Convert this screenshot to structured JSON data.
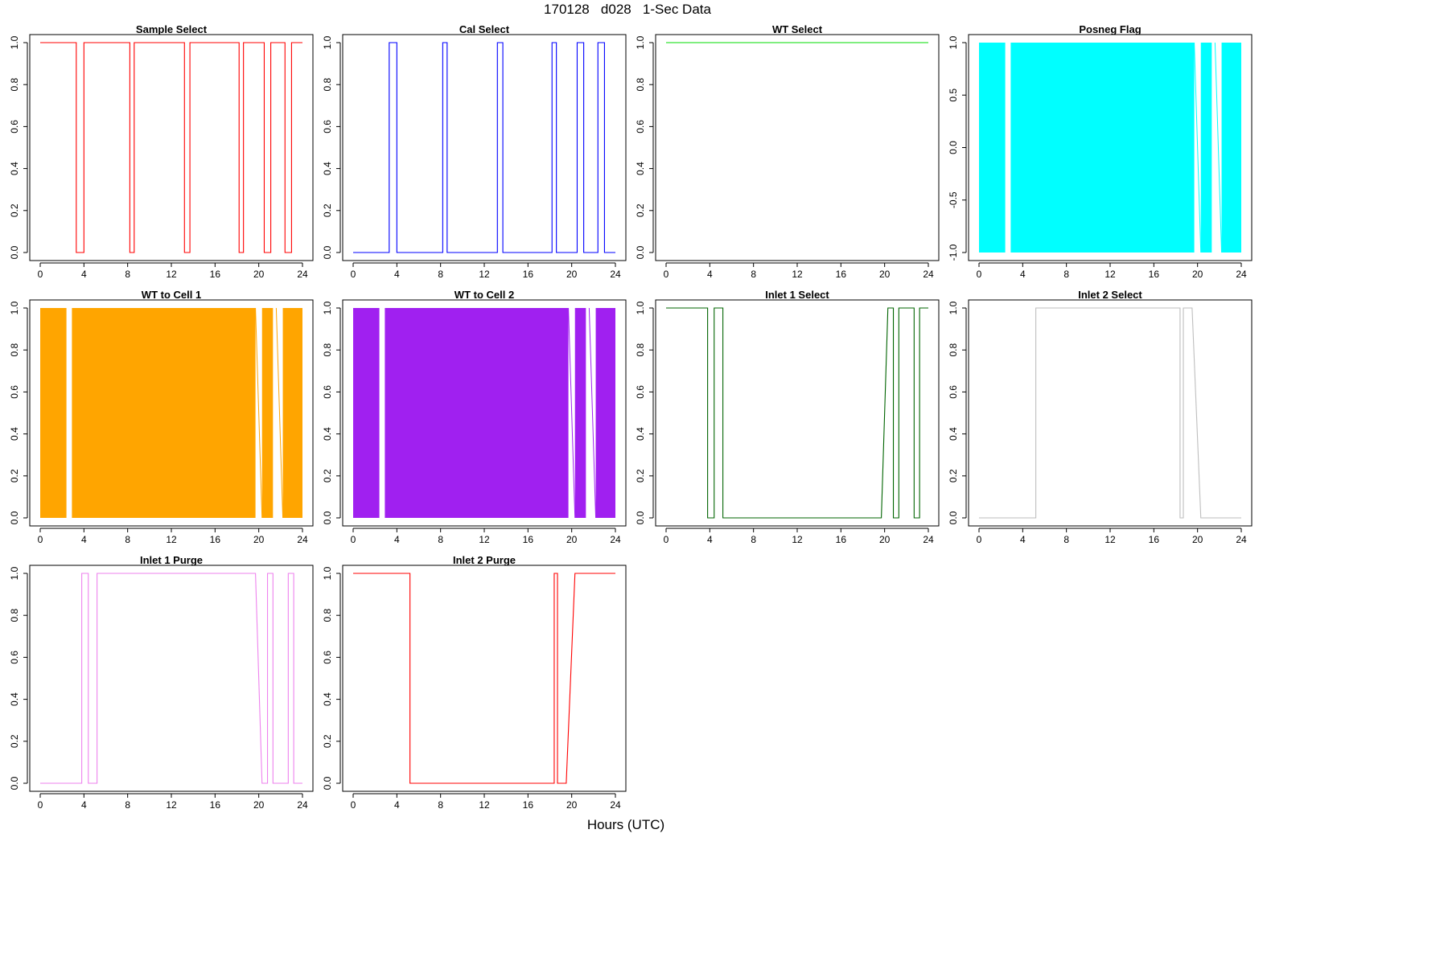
{
  "figure": {
    "title": "170128   d028   1-Sec Data",
    "xlabel": "Hours (UTC)"
  },
  "chart_data": [
    {
      "type": "line",
      "title": "Sample Select",
      "color": "#ff0000",
      "fill": false,
      "xlim": [
        0,
        24
      ],
      "ylim": [
        0,
        1
      ],
      "xticks": [
        0,
        4,
        8,
        12,
        16,
        20,
        24
      ],
      "xtick_labels": [
        "0",
        "4",
        "8",
        "12",
        "16",
        "20",
        "24"
      ],
      "yticks": [
        0,
        0.2,
        0.4,
        0.6,
        0.8,
        1.0
      ],
      "ytick_labels": [
        "0.0",
        "0.2",
        "0.4",
        "0.6",
        "0.8",
        "1.0"
      ],
      "x": [
        0,
        3.3,
        3.3,
        4.0,
        4.0,
        8.2,
        8.2,
        8.6,
        8.6,
        13.2,
        13.2,
        13.7,
        13.7,
        18.2,
        18.2,
        18.6,
        18.6,
        20.5,
        20.5,
        21.1,
        21.1,
        22.4,
        22.4,
        23.0,
        23.0,
        24
      ],
      "y": [
        1,
        1,
        0,
        0,
        1,
        1,
        0,
        0,
        1,
        1,
        0,
        0,
        1,
        1,
        0,
        0,
        1,
        1,
        0,
        0,
        1,
        1,
        0,
        0,
        1,
        1
      ]
    },
    {
      "type": "line",
      "title": "Cal Select",
      "color": "#0000ff",
      "fill": false,
      "xlim": [
        0,
        24
      ],
      "ylim": [
        0,
        1
      ],
      "xticks": [
        0,
        4,
        8,
        12,
        16,
        20,
        24
      ],
      "xtick_labels": [
        "0",
        "4",
        "8",
        "12",
        "16",
        "20",
        "24"
      ],
      "yticks": [
        0,
        0.2,
        0.4,
        0.6,
        0.8,
        1.0
      ],
      "ytick_labels": [
        "0.0",
        "0.2",
        "0.4",
        "0.6",
        "0.8",
        "1.0"
      ],
      "x": [
        0,
        3.3,
        3.3,
        4.0,
        4.0,
        8.2,
        8.2,
        8.6,
        8.6,
        13.2,
        13.2,
        13.7,
        13.7,
        18.2,
        18.2,
        18.6,
        18.6,
        20.5,
        20.5,
        21.1,
        21.1,
        22.4,
        22.4,
        23.0,
        23.0,
        24
      ],
      "y": [
        0,
        0,
        1,
        1,
        0,
        0,
        1,
        1,
        0,
        0,
        1,
        1,
        0,
        0,
        1,
        1,
        0,
        0,
        1,
        1,
        0,
        0,
        1,
        1,
        0,
        0
      ]
    },
    {
      "type": "line",
      "title": "WT Select",
      "color": "#00dd00",
      "fill": false,
      "xlim": [
        0,
        24
      ],
      "ylim": [
        0,
        1
      ],
      "xticks": [
        0,
        4,
        8,
        12,
        16,
        20,
        24
      ],
      "xtick_labels": [
        "0",
        "4",
        "8",
        "12",
        "16",
        "20",
        "24"
      ],
      "yticks": [
        0,
        0.2,
        0.4,
        0.6,
        0.8,
        1.0
      ],
      "ytick_labels": [
        "0.0",
        "0.2",
        "0.4",
        "0.6",
        "0.8",
        "1.0"
      ],
      "x": [
        0,
        24
      ],
      "y": [
        1,
        1
      ]
    },
    {
      "type": "area",
      "title": "Posneg Flag",
      "color": "#00ffff",
      "fill": true,
      "xlim": [
        0,
        24
      ],
      "ylim": [
        -1,
        1
      ],
      "xticks": [
        0,
        4,
        8,
        12,
        16,
        20,
        24
      ],
      "xtick_labels": [
        "0",
        "4",
        "8",
        "12",
        "16",
        "20",
        "24"
      ],
      "yticks": [
        -1.0,
        -0.5,
        0.0,
        0.5,
        1.0
      ],
      "ytick_labels": [
        "-1.0",
        "-0.5",
        "0.0",
        "0.5",
        "1.0"
      ],
      "filled_intervals": [
        [
          0,
          2.4
        ],
        [
          2.9,
          19.7
        ],
        [
          20.3,
          21.3
        ],
        [
          22.2,
          24
        ]
      ],
      "gap_lines": [
        [
          19.7,
          20.3
        ],
        [
          21.6,
          22.2
        ]
      ]
    },
    {
      "type": "area",
      "title": "WT to Cell 1",
      "color": "#ffa500",
      "fill": true,
      "xlim": [
        0,
        24
      ],
      "ylim": [
        0,
        1
      ],
      "xticks": [
        0,
        4,
        8,
        12,
        16,
        20,
        24
      ],
      "xtick_labels": [
        "0",
        "4",
        "8",
        "12",
        "16",
        "20",
        "24"
      ],
      "yticks": [
        0,
        0.2,
        0.4,
        0.6,
        0.8,
        1.0
      ],
      "ytick_labels": [
        "0.0",
        "0.2",
        "0.4",
        "0.6",
        "0.8",
        "1.0"
      ],
      "filled_intervals": [
        [
          0,
          2.4
        ],
        [
          2.9,
          19.7
        ],
        [
          20.3,
          21.3
        ],
        [
          22.2,
          24
        ]
      ],
      "gap_lines": [
        [
          19.7,
          20.3
        ],
        [
          21.6,
          22.2
        ]
      ]
    },
    {
      "type": "area",
      "title": "WT to Cell 2",
      "color": "#a020f0",
      "fill": true,
      "xlim": [
        0,
        24
      ],
      "ylim": [
        0,
        1
      ],
      "xticks": [
        0,
        4,
        8,
        12,
        16,
        20,
        24
      ],
      "xtick_labels": [
        "0",
        "4",
        "8",
        "12",
        "16",
        "20",
        "24"
      ],
      "yticks": [
        0,
        0.2,
        0.4,
        0.6,
        0.8,
        1.0
      ],
      "ytick_labels": [
        "0.0",
        "0.2",
        "0.4",
        "0.6",
        "0.8",
        "1.0"
      ],
      "filled_intervals": [
        [
          0,
          2.4
        ],
        [
          2.9,
          19.7
        ],
        [
          20.3,
          21.3
        ],
        [
          22.2,
          24
        ]
      ],
      "gap_lines": [
        [
          19.7,
          20.3
        ],
        [
          21.6,
          22.2
        ]
      ]
    },
    {
      "type": "line",
      "title": "Inlet 1 Select",
      "color": "#006400",
      "fill": false,
      "xlim": [
        0,
        24
      ],
      "ylim": [
        0,
        1
      ],
      "xticks": [
        0,
        4,
        8,
        12,
        16,
        20,
        24
      ],
      "xtick_labels": [
        "0",
        "4",
        "8",
        "12",
        "16",
        "20",
        "24"
      ],
      "yticks": [
        0,
        0.2,
        0.4,
        0.6,
        0.8,
        1.0
      ],
      "ytick_labels": [
        "0.0",
        "0.2",
        "0.4",
        "0.6",
        "0.8",
        "1.0"
      ],
      "x": [
        0,
        3.8,
        3.8,
        4.4,
        4.4,
        5.2,
        5.2,
        19.7,
        20.3,
        20.8,
        20.8,
        21.3,
        21.3,
        22.7,
        22.7,
        23.2,
        23.2,
        24
      ],
      "y": [
        1,
        1,
        0,
        0,
        1,
        1,
        0,
        0,
        1,
        1,
        0,
        0,
        1,
        1,
        0,
        0,
        1,
        1
      ]
    },
    {
      "type": "line",
      "title": "Inlet 2 Select",
      "color": "#bebebe",
      "fill": false,
      "xlim": [
        0,
        24
      ],
      "ylim": [
        0,
        1
      ],
      "xticks": [
        0,
        4,
        8,
        12,
        16,
        20,
        24
      ],
      "xtick_labels": [
        "0",
        "4",
        "8",
        "12",
        "16",
        "20",
        "24"
      ],
      "yticks": [
        0,
        0.2,
        0.4,
        0.6,
        0.8,
        1.0
      ],
      "ytick_labels": [
        "0.0",
        "0.2",
        "0.4",
        "0.6",
        "0.8",
        "1.0"
      ],
      "x": [
        0,
        5.2,
        5.2,
        18.4,
        18.4,
        18.7,
        18.7,
        19.5,
        20.3,
        24
      ],
      "y": [
        0,
        0,
        1,
        1,
        0,
        0,
        1,
        1,
        0,
        0
      ]
    },
    {
      "type": "line",
      "title": "Inlet 1 Purge",
      "color": "#ee82ee",
      "fill": false,
      "xlim": [
        0,
        24
      ],
      "ylim": [
        0,
        1
      ],
      "xticks": [
        0,
        4,
        8,
        12,
        16,
        20,
        24
      ],
      "xtick_labels": [
        "0",
        "4",
        "8",
        "12",
        "16",
        "20",
        "24"
      ],
      "yticks": [
        0,
        0.2,
        0.4,
        0.6,
        0.8,
        1.0
      ],
      "ytick_labels": [
        "0.0",
        "0.2",
        "0.4",
        "0.6",
        "0.8",
        "1.0"
      ],
      "x": [
        0,
        3.8,
        3.8,
        4.4,
        4.4,
        5.2,
        5.2,
        19.7,
        20.3,
        20.8,
        20.8,
        21.3,
        21.3,
        22.7,
        22.7,
        23.2,
        23.2,
        24
      ],
      "y": [
        0,
        0,
        1,
        1,
        0,
        0,
        1,
        1,
        0,
        0,
        1,
        1,
        0,
        0,
        1,
        1,
        0,
        0
      ]
    },
    {
      "type": "line",
      "title": "Inlet 2 Purge",
      "color": "#ff0000",
      "fill": false,
      "xlim": [
        0,
        24
      ],
      "ylim": [
        0,
        1
      ],
      "xticks": [
        0,
        4,
        8,
        12,
        16,
        20,
        24
      ],
      "xtick_labels": [
        "0",
        "4",
        "8",
        "12",
        "16",
        "20",
        "24"
      ],
      "yticks": [
        0,
        0.2,
        0.4,
        0.6,
        0.8,
        1.0
      ],
      "ytick_labels": [
        "0.0",
        "0.2",
        "0.4",
        "0.6",
        "0.8",
        "1.0"
      ],
      "x": [
        0,
        5.2,
        5.2,
        18.4,
        18.4,
        18.7,
        18.7,
        19.5,
        20.3,
        24
      ],
      "y": [
        1,
        1,
        0,
        0,
        1,
        1,
        0,
        0,
        1,
        1
      ]
    }
  ]
}
